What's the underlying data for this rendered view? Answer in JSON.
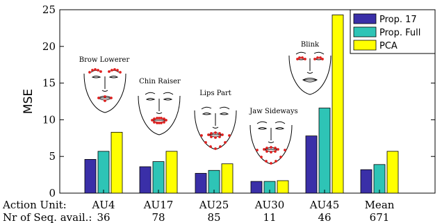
{
  "chart_data": {
    "type": "bar",
    "categories": [
      "AU4",
      "AU17",
      "AU25",
      "AU30",
      "AU45",
      "Mean"
    ],
    "sequences_available": [
      "36",
      "78",
      "85",
      "11",
      "46",
      "671"
    ],
    "row_labels": {
      "action_unit": "Action Unit:",
      "sequences": "Nr of Seq. avail.:"
    },
    "series": [
      {
        "name": "Prop. 17",
        "color": "#3a2fa8",
        "values": [
          4.6,
          3.6,
          2.7,
          1.6,
          7.8,
          3.2
        ]
      },
      {
        "name": "Prop. Full",
        "color": "#2ec4b6",
        "values": [
          5.7,
          4.3,
          3.1,
          1.6,
          11.6,
          3.9
        ]
      },
      {
        "name": "PCA",
        "color": "#ffff00",
        "values": [
          8.3,
          5.7,
          4.0,
          1.7,
          24.3,
          5.7
        ]
      }
    ],
    "ylabel": "MSE",
    "ylim": [
      0,
      25
    ],
    "yticks": [
      0,
      5,
      10,
      15,
      20,
      25
    ],
    "legend_position": "top-right",
    "grid": false,
    "face_annotations": [
      {
        "label": "Brow Lowerer",
        "category": "AU4",
        "marker_feature": "brows"
      },
      {
        "label": "Chin Raiser",
        "category": "AU17",
        "marker_feature": "mouth"
      },
      {
        "label": "Lips Part",
        "category": "AU25",
        "marker_feature": "mouth-jaw"
      },
      {
        "label": "Jaw Sideways",
        "category": "AU30",
        "marker_feature": "mouth-jaw"
      },
      {
        "label": "Blink",
        "category": "AU45",
        "marker_feature": "eyes"
      }
    ]
  }
}
